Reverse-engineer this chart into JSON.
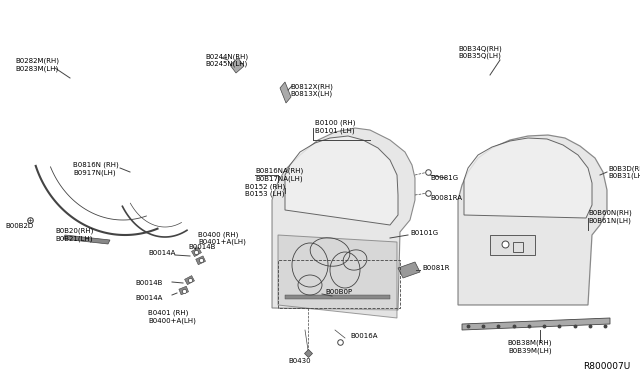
{
  "bg_color": "#ffffff",
  "line_color": "#444444",
  "text_color": "#000000",
  "fig_width": 6.4,
  "fig_height": 3.72,
  "dpi": 100,
  "diagram_ref": "R800007U",
  "labels": {
    "B0282M": "B0282M(RH)\nB0283M(LH)",
    "B0244N": "B0244N(RH)\nB0245N(LH)",
    "B0812X": "B0812X(RH)\nB0813X(LH)",
    "B0100": "B0100 (RH)\nB0101 (LH)",
    "B0816N": "B0816N (RH)\nB0917N(LH)",
    "B0816NA": "B0816NA(RH)\nB0B17NA(LH)",
    "B0152": "B0152 (RH)\nB0153 (LH)",
    "B00B2D": "B00B2D",
    "B0B20": "B0B20(RH)\nB0B21(LH)",
    "B0400": "B0400 (RH)\nB0401+A(LH)",
    "B0014B_1": "B0014B",
    "B0014A_1": "B0014A",
    "B0014B_2": "B0014B",
    "B0014A_2": "B0014A",
    "B0401": "B0401 (RH)\nB0400+A(LH)",
    "B0081G": "B0081G",
    "B0081RA": "B0081RA",
    "B0101G": "B0101G",
    "B00B0P": "B00B0P",
    "B0081R": "B0081R",
    "B0016A": "B0016A",
    "B0430": "B0430",
    "B0B34Q": "B0B34Q(RH)\nB0B35Q(LH)",
    "B0B3D": "B0B3D(RH)\nB0B31(LH)",
    "B0B60N": "B0B60N(RH)\nB0B61N(LH)",
    "B0B38M": "B0B38M(RH)\nB0B39M(LH)"
  }
}
